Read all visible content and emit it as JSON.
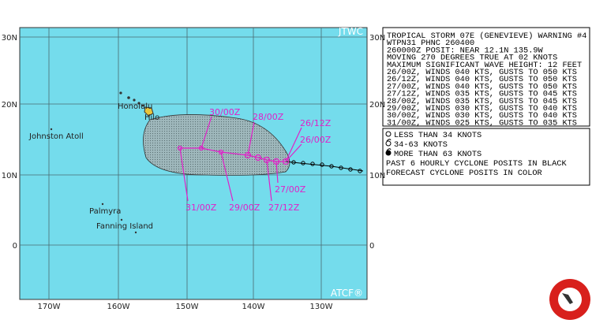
{
  "map": {
    "corner_labels": {
      "top": "JTWC",
      "bottom": "ATCF®"
    },
    "lat_labels": [
      "30N",
      "20N",
      "10N",
      "0"
    ],
    "lon_labels": [
      "170W",
      "160W",
      "150W",
      "140W",
      "130W"
    ],
    "places": [
      "Honolulu",
      "Hilo",
      "Johnston Atoll",
      "Palmyra",
      "Fanning Island"
    ],
    "track_labels": [
      "30/00Z",
      "28/00Z",
      "26/12Z",
      "26/00Z",
      "27/00Z",
      "27/12Z",
      "29/00Z",
      "31/00Z"
    ]
  },
  "warning": {
    "lines": [
      "TROPICAL STORM 07E (GENEVIEVE) WARNING #4",
      "WTPN31 PHNC 260400",
      "260000Z POSIT: NEAR 12.1N 135.9W",
      "MOVING 270 DEGREES TRUE AT 02 KNOTS",
      "MAXIMUM SIGNIFICANT WAVE HEIGHT: 12 FEET",
      "26/00Z, WINDS 040 KTS, GUSTS TO 050 KTS",
      "26/12Z, WINDS 040 KTS, GUSTS TO 050 KTS",
      "27/00Z, WINDS 040 KTS, GUSTS TO 050 KTS",
      "27/12Z, WINDS 035 KTS, GUSTS TO 045 KTS",
      "28/00Z, WINDS 035 KTS, GUSTS TO 045 KTS",
      "29/00Z, WINDS 030 KTS, GUSTS TO 040 KTS",
      "30/00Z, WINDS 030 KTS, GUSTS TO 040 KTS",
      "31/00Z, WINDS 025 KTS, GUSTS TO 035 KTS"
    ]
  },
  "legend": {
    "lines": [
      "LESS THAN 34 KNOTS",
      "34-63 KNOTS",
      "MORE THAN 63 KNOTS",
      "PAST 6 HOURLY CYCLONE POSITS IN BLACK",
      "FORECAST CYCLONE POSITS IN COLOR"
    ]
  }
}
